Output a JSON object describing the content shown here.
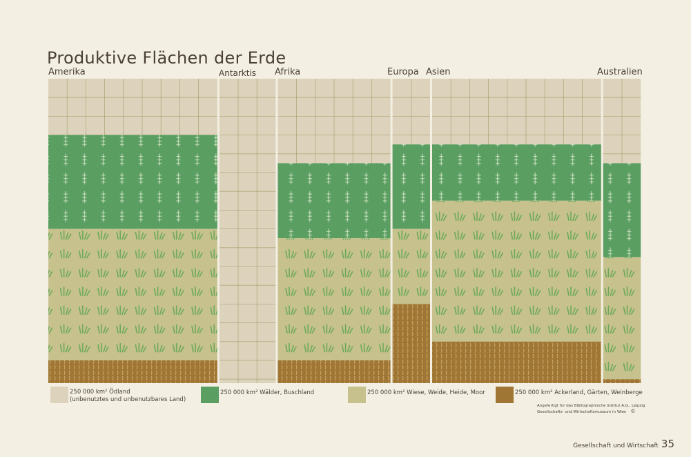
{
  "title": "Produktive Flächen der Erde",
  "colors": {
    "odland": "#ddd3bd",
    "odland_grid": "#8f8f52",
    "walder": "#5a9e62",
    "wiese": "#c7c28d",
    "wiese_mark": "#6aa85a",
    "ackerland": "#a07635",
    "acker_mark": "#d8b878",
    "background": "#f3efe2"
  },
  "chart_data": {
    "type": "mosaic",
    "unit": "250 000 km²",
    "categories": [
      "odland",
      "walder",
      "wiese",
      "ackerland"
    ],
    "continents": [
      {
        "name": "Amerika",
        "cols": 9,
        "odland": 3,
        "walder": 5,
        "wiese": 7,
        "ackerland": 2
      },
      {
        "name": "Antarktis",
        "cols": 3,
        "odland": 17,
        "walder": 0,
        "wiese": 0,
        "ackerland": 0
      },
      {
        "name": "Afrika",
        "cols": 6,
        "odland": 4.5,
        "walder": 4,
        "wiese": 6.5,
        "ackerland": 2
      },
      {
        "name": "Europa",
        "cols": 2,
        "odland": 3.5,
        "walder": 4.5,
        "wiese": 4,
        "ackerland": 4.5
      },
      {
        "name": "Asien",
        "cols": 9,
        "odland": 3.5,
        "walder": 3,
        "wiese": 7.5,
        "ackerland": 3
      },
      {
        "name": "Australien",
        "cols": 2,
        "odland": 4.5,
        "walder": 5,
        "wiese": 6.5,
        "ackerland": 1
      }
    ]
  },
  "continent_labels": [
    "Amerika",
    "Antarktis",
    "Afrika",
    "Europa",
    "Asien",
    "Australien"
  ],
  "legend": {
    "odland_line1": "250 000 km² Ödland",
    "odland_line2": "(unbenutztes und unbenutzbares Land)",
    "walder": "250 000 km² Wälder, Buschland",
    "wiese": "250 000 km² Wiese, Weide, Heide, Moor",
    "acker": "250 000 km² Ackerland, Gärten, Weinberge"
  },
  "credit": {
    "line1": "Angefertigt für das Bibliographische Institut A.G., Leipzig",
    "line2": "Gesellschafts- und Wirtschaftsmuseum in Wien"
  },
  "footer": {
    "text": "Gesellschaft und Wirtschaft",
    "page": "35"
  }
}
